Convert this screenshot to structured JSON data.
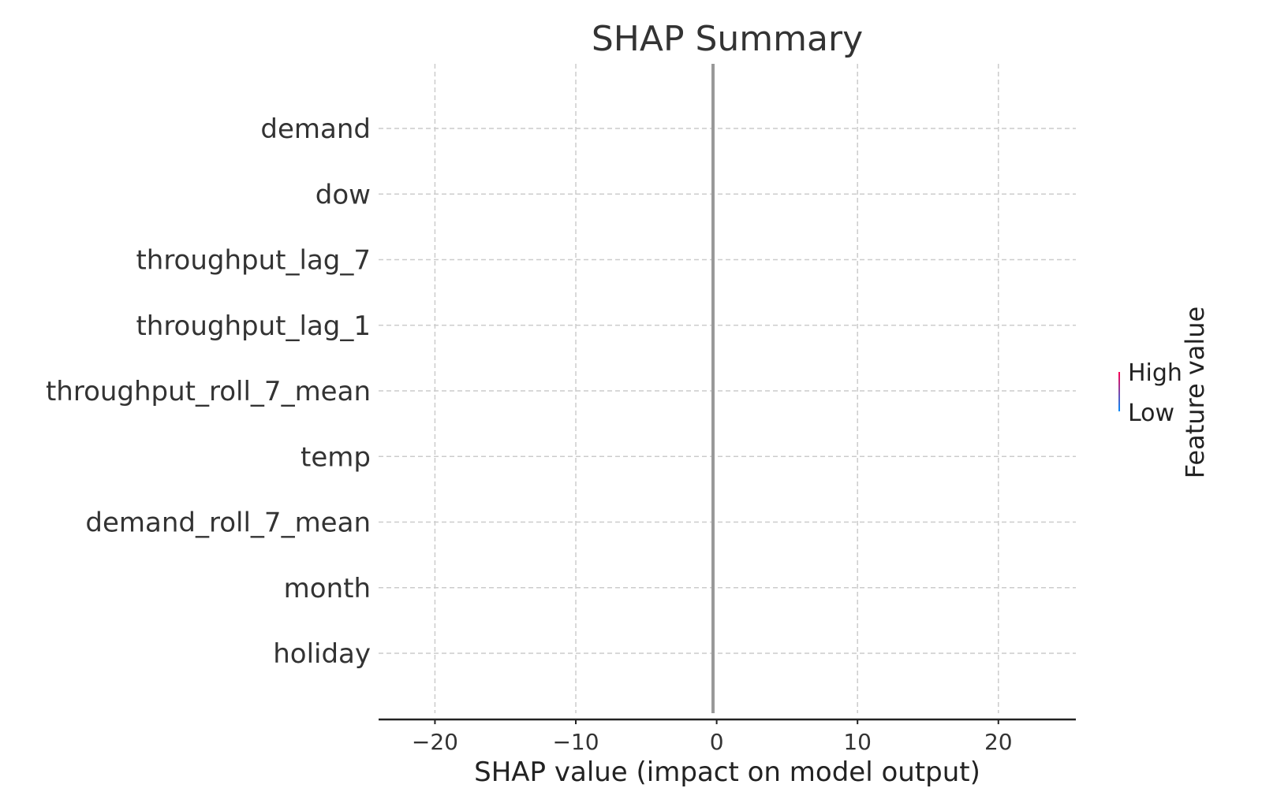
{
  "chart_data": {
    "type": "scatter",
    "title": "SHAP Summary",
    "xlabel": "SHAP value (impact on model output)",
    "ylabel": "",
    "xlim": [
      -24,
      25.5
    ],
    "xticks": [
      -20,
      -10,
      0,
      10,
      20
    ],
    "xtick_labels": [
      "−20",
      "−10",
      "0",
      "10",
      "20"
    ],
    "features": [
      "demand",
      "dow",
      "throughput_lag_7",
      "throughput_lag_1",
      "throughput_roll_7_mean",
      "temp",
      "demand_roll_7_mean",
      "month",
      "holiday"
    ],
    "zero_line": 0,
    "grid": true,
    "colorbar": {
      "label": "Feature value",
      "high_label": "High",
      "low_label": "Low",
      "high_color": "#ff0052",
      "low_color": "#008bfb"
    }
  }
}
